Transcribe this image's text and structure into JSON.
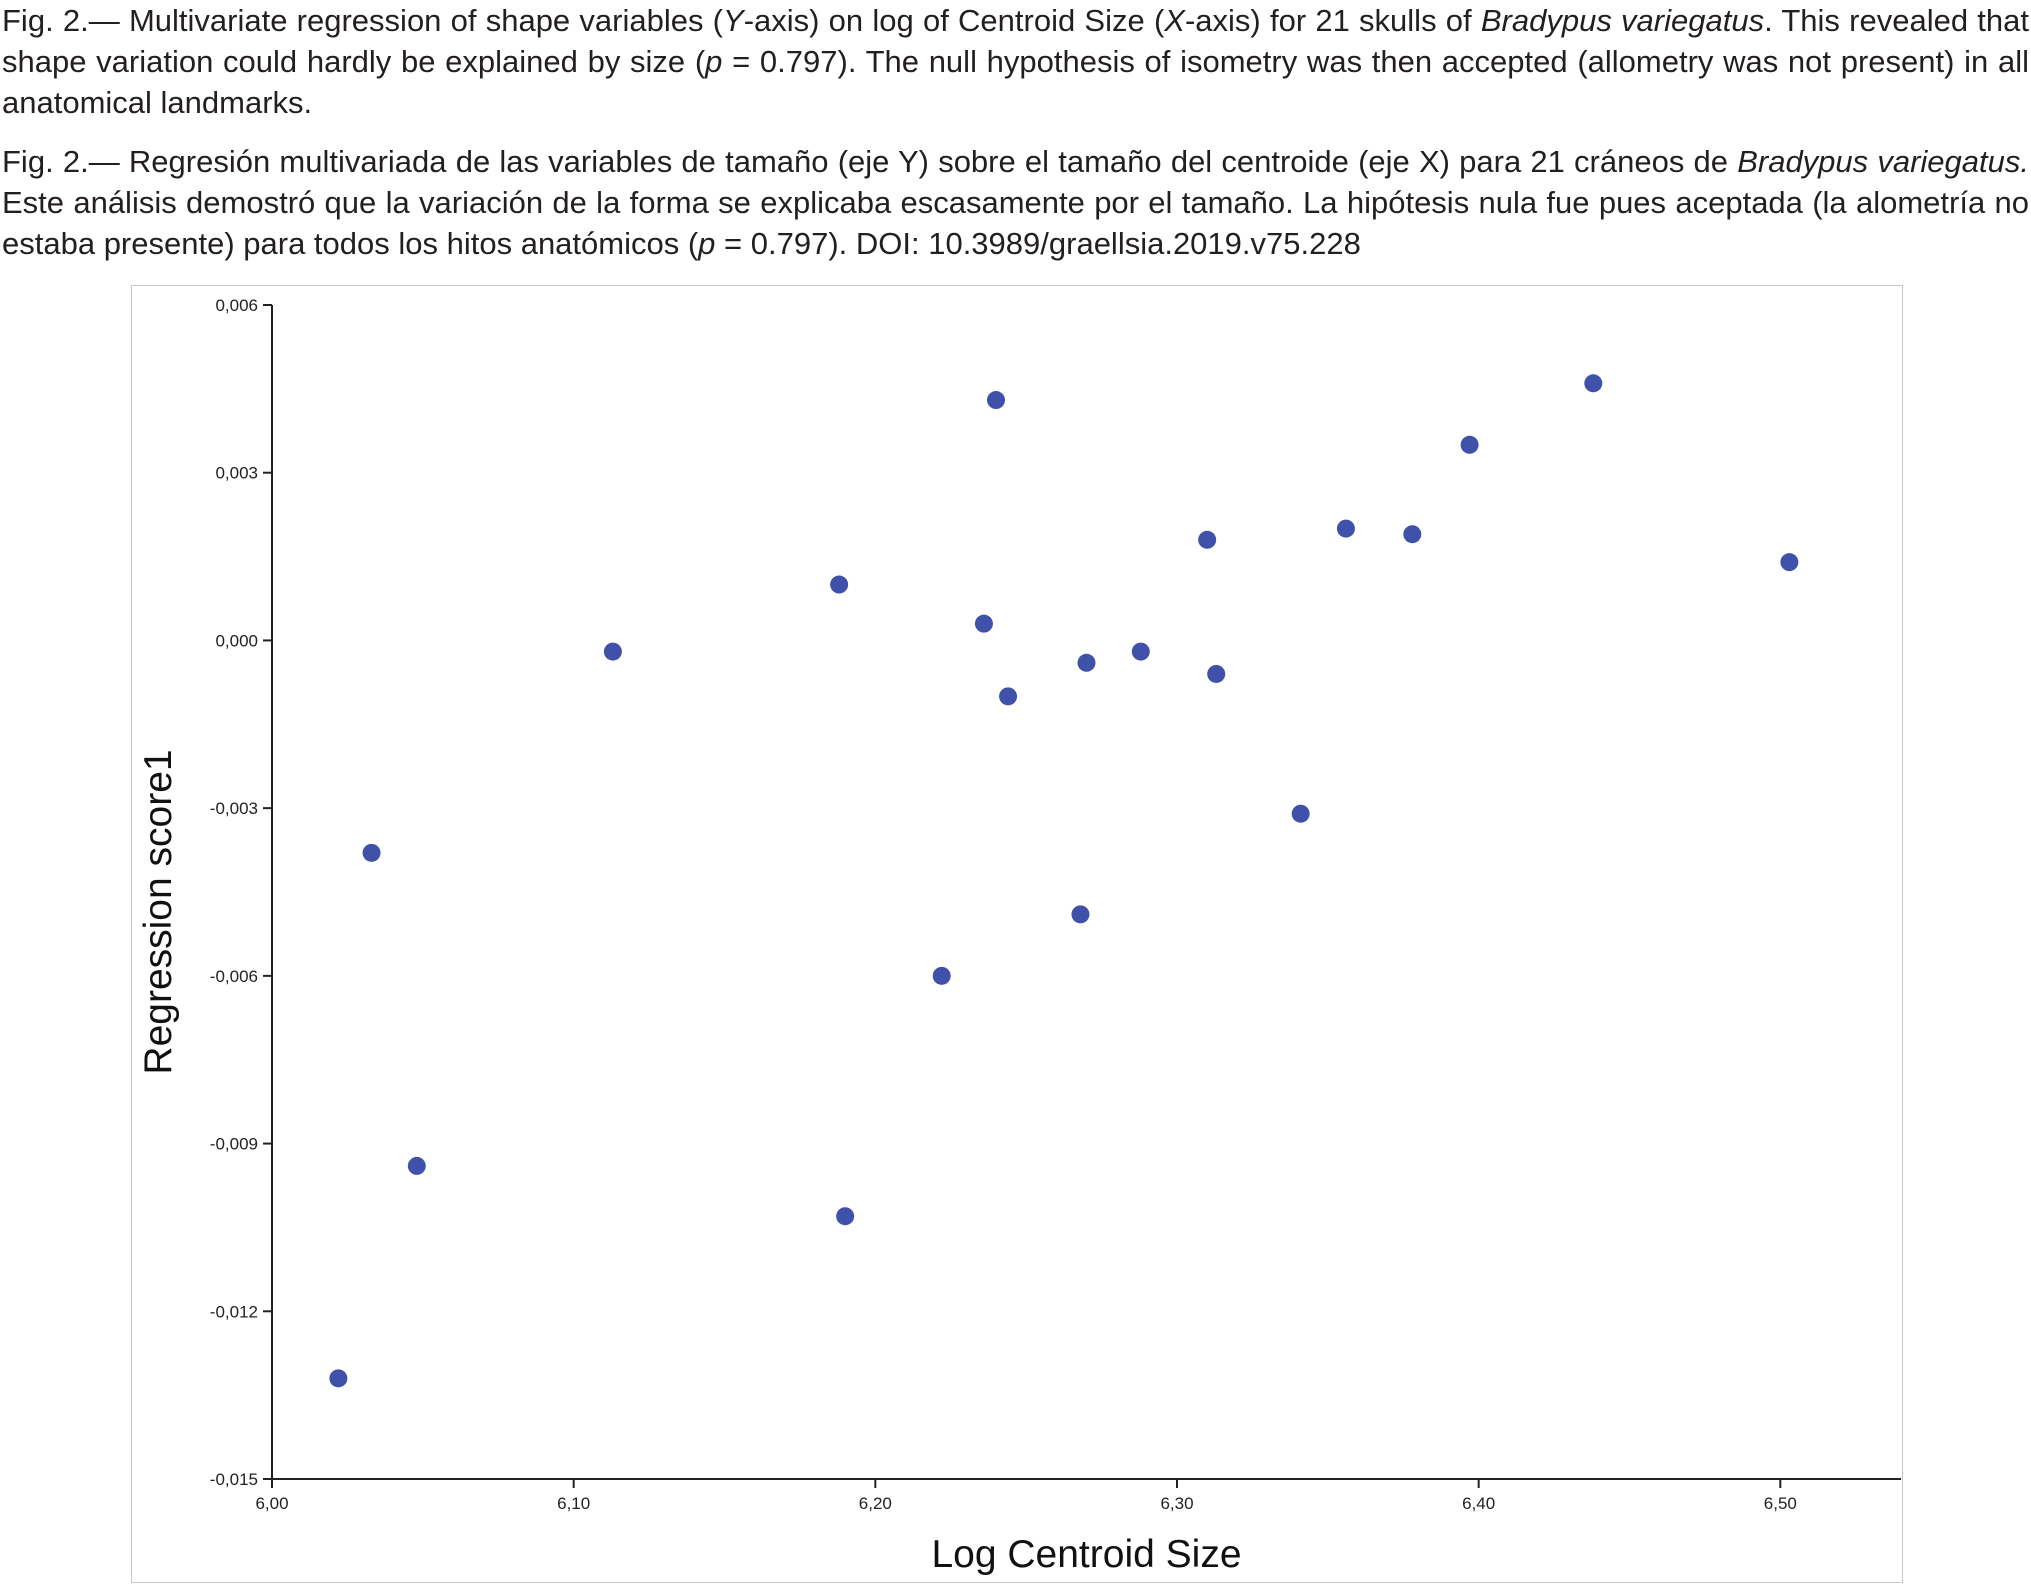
{
  "caption_en": {
    "part1": "Fig. 2.— Multivariate regression of shape variables (",
    "y_italic": "Y",
    "part2": "-axis) on log of Centroid Size (",
    "x_italic": "X",
    "part3": "-axis) for 21 skulls of ",
    "species": "Bradypus variegatus",
    "part4": ". This revealed that shape variation could hardly be explained by size (",
    "p_italic": "p",
    "part5": " = 0.797). The null hypothesis of isometry was then accepted (allometry was not present) in all anatomical landmarks."
  },
  "caption_es": {
    "part1": "Fig. 2.— Regresión multivariada de las variables de tamaño (eje Y) sobre el tamaño del centroide (eje X) para 21 cráneos de ",
    "species": "Bradypus variegatus.",
    "part2": " Este análisis demostró que la variación de la forma se explicaba escasamente por el tamaño. La hipótesis nula fue pues aceptada (la alometría no estaba presente) para todos los hitos anatómicos (",
    "p_italic": "p",
    "part3": " = 0.797). DOI: 10.3989/graellsia.2019.v75.228"
  },
  "chart_data": {
    "type": "scatter",
    "xlabel": "Log Centroid Size",
    "ylabel": "Regression score1",
    "xlim": [
      6.0,
      6.54
    ],
    "ylim": [
      -0.015,
      0.006
    ],
    "x_ticks": [
      6.0,
      6.1,
      6.2,
      6.3,
      6.4,
      6.5
    ],
    "x_tick_labels": [
      "6,00",
      "6,10",
      "6,20",
      "6,30",
      "6,40",
      "6,50"
    ],
    "y_ticks": [
      0.006,
      0.003,
      0.0,
      -0.003,
      -0.006,
      -0.009,
      -0.012,
      -0.015
    ],
    "y_tick_labels": [
      "0,006",
      "0,003",
      "0,000",
      "-0,003",
      "-0,006",
      "-0,009",
      "-0,012",
      "-0,015"
    ],
    "grid": false,
    "marker_color": "#3f51a8",
    "points": [
      {
        "x": 6.022,
        "y": -0.0132
      },
      {
        "x": 6.033,
        "y": -0.0038
      },
      {
        "x": 6.048,
        "y": -0.0094
      },
      {
        "x": 6.113,
        "y": -0.0002
      },
      {
        "x": 6.188,
        "y": 0.001
      },
      {
        "x": 6.19,
        "y": -0.0103
      },
      {
        "x": 6.222,
        "y": -0.006
      },
      {
        "x": 6.236,
        "y": 0.0003
      },
      {
        "x": 6.24,
        "y": 0.0043
      },
      {
        "x": 6.244,
        "y": -0.001
      },
      {
        "x": 6.268,
        "y": -0.0049
      },
      {
        "x": 6.27,
        "y": -0.0004
      },
      {
        "x": 6.288,
        "y": -0.0002
      },
      {
        "x": 6.31,
        "y": 0.0018
      },
      {
        "x": 6.313,
        "y": -0.0006
      },
      {
        "x": 6.341,
        "y": -0.0031
      },
      {
        "x": 6.356,
        "y": 0.002
      },
      {
        "x": 6.378,
        "y": 0.0019
      },
      {
        "x": 6.397,
        "y": 0.0035
      },
      {
        "x": 6.438,
        "y": 0.0046
      },
      {
        "x": 6.503,
        "y": 0.0014
      }
    ]
  }
}
